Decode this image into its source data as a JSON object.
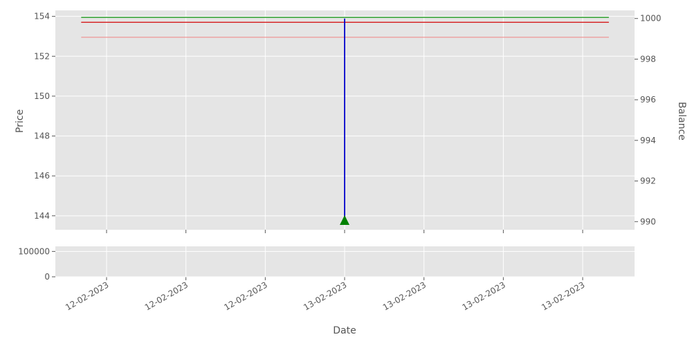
{
  "chart_data": [
    {
      "type": "line",
      "panel": "price",
      "ylabel": "Price",
      "ylim": [
        143.3,
        154.3
      ],
      "yticks": [
        144,
        146,
        148,
        150,
        152,
        154
      ],
      "x_tick_labels": [
        "12-02-2023",
        "12-02-2023",
        "12-02-2023",
        "13-02-2023",
        "13-02-2023",
        "13-02-2023",
        "13-02-2023"
      ],
      "x_tick_count": 7,
      "grid": true,
      "series": [
        {
          "color": "#2ca02c",
          "x_range": [
            -0.32,
            6.33
          ],
          "y": 153.95
        },
        {
          "color": "#d62728",
          "x_range": [
            -0.32,
            6.33
          ],
          "y": 153.7
        },
        {
          "color": "#f08080",
          "x_range": [
            -0.32,
            6.33
          ],
          "y": 152.95
        }
      ],
      "markers": [
        {
          "shape": "triangle-up",
          "color": "#008000",
          "x": 3,
          "y": 143.75
        }
      ]
    },
    {
      "type": "line",
      "panel": "balance",
      "ylabel": "Balance",
      "axis": "right",
      "ylim": [
        989.6,
        1000.4
      ],
      "yticks": [
        990,
        992,
        994,
        996,
        998,
        1000
      ],
      "series": [
        {
          "color": "#0000cc",
          "x": [
            3,
            3
          ],
          "y": [
            990,
            1000
          ]
        }
      ]
    },
    {
      "type": "bar",
      "panel": "volume",
      "ylim": [
        0,
        120000
      ],
      "yticks": [
        0,
        100000
      ],
      "xlabel": "Date",
      "values": []
    }
  ]
}
